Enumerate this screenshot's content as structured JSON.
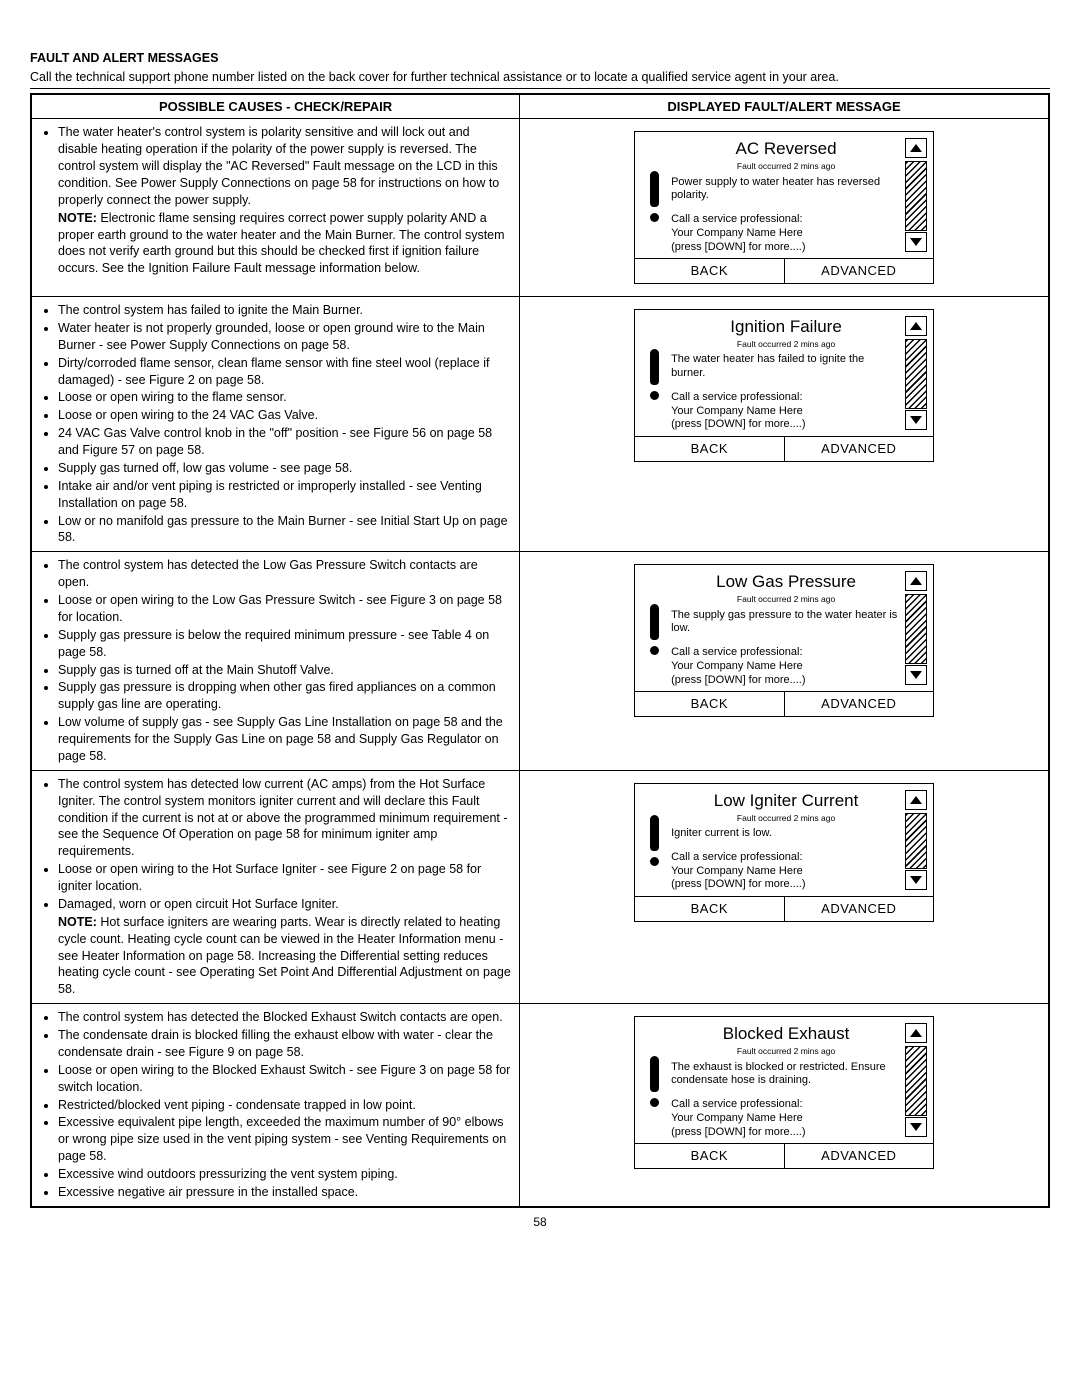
{
  "page": {
    "section_title": "FAULT AND ALERT MESSAGES",
    "intro": "Call the technical support phone number listed on the back cover for further technical assistance or to locate a qualified service agent in your area.",
    "header_left": "POSSIBLE CAUSES - CHECK/REPAIR",
    "header_right": "DISPLAYED FAULT/ALERT MESSAGE",
    "page_number": "58"
  },
  "lcd_common": {
    "fault_sub": "Fault occurred 2 mins ago",
    "call_line1": "Call a service professional:",
    "call_line2": "Your Company Name Here",
    "call_line3": "(press [DOWN] for more....)",
    "back": "BACK",
    "advanced": "ADVANCED"
  },
  "rows": [
    {
      "causes_html": "<ul class='causes'><li>The water heater's control system is polarity sensitive and will lock out and disable heating operation if the polarity of the power supply is reversed. The control system will display the \"AC Reversed\" Fault message on the LCD in this condition. See Power Supply Connections on page 58 for instructions on how to properly connect the power supply.<span class='sub-indent note-block'><span class='note-label'>NOTE:</span> Electronic flame sensing requires correct power supply polarity AND a proper earth ground to the water heater and the Main Burner. The control system does not verify earth ground but this should be checked first if ignition failure occurs. See the Ignition Failure Fault message information below.</span></li></ul>",
      "lcd": {
        "title": "AC Reversed",
        "msg": "Power supply to water heater has reversed polarity."
      }
    },
    {
      "causes_html": "<ul class='causes'><li>The control system has failed to ignite the Main Burner.</li><li>Water heater is not properly grounded, loose or open ground wire to the Main Burner - see Power Supply Connections on page 58.</li><li>Dirty/corroded flame sensor, clean flame sensor with fine steel wool (replace if damaged) - see Figure 2 on page 58.</li><li>Loose or open wiring to the flame sensor.</li><li>Loose or open wiring to the 24 VAC Gas Valve.</li><li>24 VAC Gas Valve control knob in the \"off\" position - see Figure 56 on page 58 and Figure 57 on page 58.</li><li>Supply gas turned off, low gas volume - see page 58.</li><li>Intake air and/or vent piping is restricted or improperly installed - see Venting Installation on page 58.</li><li>Low or no manifold gas pressure to the Main Burner - see Initial Start Up on page 58.</li></ul>",
      "lcd": {
        "title": "Ignition Failure",
        "msg": "The water heater has failed to ignite the burner."
      }
    },
    {
      "causes_html": "<ul class='causes'><li>The control system has detected the Low Gas Pressure Switch contacts are open.</li><li>Loose or open wiring to the Low Gas Pressure Switch - see Figure 3 on page 58 for location.</li><li>Supply gas pressure is below the required minimum pressure - see Table 4 on page 58.</li><li>Supply gas is turned off at the Main Shutoff Valve.</li><li>Supply gas pressure is dropping when other gas fired appliances on a common supply gas line are operating.</li><li>Low volume of supply gas - see Supply Gas Line Installation on page 58 and the requirements for the Supply Gas Line on page 58 and Supply Gas Regulator on page 58.</li></ul>",
      "lcd": {
        "title": "Low Gas Pressure",
        "msg": "The supply gas pressure to the water heater is low."
      }
    },
    {
      "causes_html": "<ul class='causes'><li>The control system has detected low current (AC amps) from the Hot Surface Igniter. The control system monitors igniter current and will declare this Fault condition if the current is not at or above the programmed minimum requirement - see the Sequence Of Operation on page 58 for minimum igniter amp requirements.</li><li>Loose or open wiring to the Hot Surface Igniter - see Figure 2 on page 58 for igniter location.</li><li>Damaged, worn or open circuit Hot Surface Igniter.<span class='sub-indent note-block'><span class='note-label'>NOTE:</span> Hot surface igniters are wearing parts. Wear is directly related to heating cycle count. Heating cycle count can be viewed in the Heater Information menu - see Heater Information on page 58. Increasing the Differential setting reduces heating cycle count - see Operating Set Point And Differential Adjustment on page 58.</span></li></ul>",
      "lcd": {
        "title": "Low Igniter Current",
        "msg": "Igniter current is low."
      }
    },
    {
      "causes_html": "<ul class='causes'><li>The control system has detected the Blocked Exhaust Switch contacts are open.</li><li>The condensate drain is blocked filling the exhaust elbow with water - clear the condensate drain - see Figure 9 on page 58.</li><li>Loose or open wiring to the Blocked Exhaust Switch - see Figure 3 on page 58 for switch location.</li><li>Restricted/blocked vent piping - condensate trapped in low point.</li><li>Excessive equivalent pipe length, exceeded the maximum number of 90° elbows or wrong pipe size used in the vent piping system - see Venting Requirements on page 58.</li><li>Excessive wind outdoors pressurizing the vent system piping.</li><li>Excessive negative air pressure in the installed space.</li></ul>",
      "lcd": {
        "title": "Blocked Exhaust",
        "msg": "The exhaust is blocked or restricted. Ensure condensate hose is draining."
      }
    }
  ]
}
